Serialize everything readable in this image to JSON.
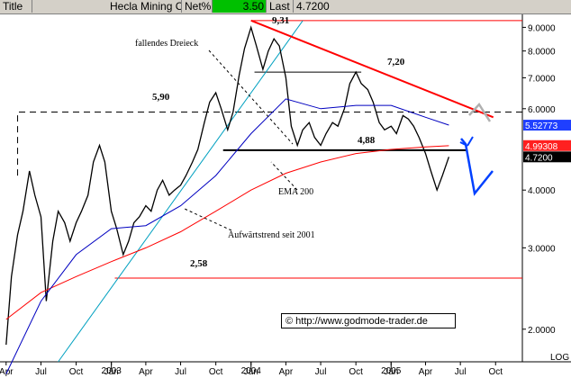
{
  "header": {
    "title_label": "Title",
    "instrument": "Hecla Mining Co",
    "netpct_label": "Net%",
    "netpct_value": "3.50",
    "last_label": "Last",
    "last_value": "4.7200"
  },
  "colors": {
    "header_bg": "#d4d0c8",
    "netpct_bg": "#00c000",
    "price": "#000000",
    "ema200": "#ff0000",
    "ma_blue": "#0000c0",
    "trend_line": "#00a0c0",
    "resistance_line": "#ff0000",
    "forecast": "#0040ff",
    "badge_blue": "#1f3fff",
    "badge_red": "#ff2020"
  },
  "copyright": {
    "symbol": "©",
    "text": "http://www.godmode-trader.de"
  },
  "chart_data": {
    "type": "line",
    "title": "",
    "scale": "log",
    "grid": false,
    "ylim": [
      1.7,
      9.6
    ],
    "x_range": [
      "2002-04",
      "2005-10"
    ],
    "x_tick_labels": [
      {
        "date": "2002-04",
        "label": "Apr"
      },
      {
        "date": "2002-07",
        "label": "Jul"
      },
      {
        "date": "2002-10",
        "label": "Oct"
      },
      {
        "date": "2003-01",
        "label": "Jan"
      },
      {
        "date": "2003-04",
        "label": "Apr"
      },
      {
        "date": "2003-07",
        "label": "Jul"
      },
      {
        "date": "2003-10",
        "label": "Oct"
      },
      {
        "date": "2004-01",
        "label": "Jan"
      },
      {
        "date": "2004-04",
        "label": "Apr"
      },
      {
        "date": "2004-07",
        "label": "Jul"
      },
      {
        "date": "2004-10",
        "label": "Oct"
      },
      {
        "date": "2005-01",
        "label": "Jan"
      },
      {
        "date": "2005-04",
        "label": "Apr"
      },
      {
        "date": "2005-07",
        "label": "Jul"
      },
      {
        "date": "2005-10",
        "label": "Oct"
      }
    ],
    "year_labels": [
      {
        "date": "2003-01",
        "label": "2003"
      },
      {
        "date": "2004-01",
        "label": "2004"
      },
      {
        "date": "2005-01",
        "label": "2005"
      }
    ],
    "y_ticks": [
      {
        "value": 9.0,
        "label": "9.0000"
      },
      {
        "value": 8.0,
        "label": "8.0000"
      },
      {
        "value": 7.0,
        "label": "7.0000"
      },
      {
        "value": 6.0,
        "label": "6.0000"
      },
      {
        "value": 4.0,
        "label": "4.0000"
      },
      {
        "value": 3.0,
        "label": "3.0000"
      },
      {
        "value": 2.0,
        "label": "2.0000"
      }
    ],
    "y_scale_label": "LOG",
    "price_badges": [
      {
        "value": 5.52773,
        "label": "5.52773",
        "color": "#1f3fff"
      },
      {
        "value": 4.99308,
        "label": "4.99308",
        "color": "#ff2020"
      },
      {
        "value": 4.72,
        "label": "4.7200",
        "color": "#000000"
      }
    ],
    "series": [
      {
        "style": "black",
        "points": [
          [
            "2002-04-01",
            1.85
          ],
          [
            "2002-04-15",
            2.6
          ],
          [
            "2002-05-01",
            3.2
          ],
          [
            "2002-05-15",
            3.6
          ],
          [
            "2002-06-01",
            4.4
          ],
          [
            "2002-06-15",
            3.9
          ],
          [
            "2002-07-01",
            3.5
          ],
          [
            "2002-07-15",
            2.3
          ],
          [
            "2002-08-01",
            3.1
          ],
          [
            "2002-08-15",
            3.6
          ],
          [
            "2002-09-01",
            3.4
          ],
          [
            "2002-09-15",
            3.1
          ],
          [
            "2002-10-01",
            3.4
          ],
          [
            "2002-10-15",
            3.6
          ],
          [
            "2002-11-01",
            3.9
          ],
          [
            "2002-11-15",
            4.6
          ],
          [
            "2002-12-01",
            5.0
          ],
          [
            "2002-12-15",
            4.6
          ],
          [
            "2003-01-01",
            3.6
          ],
          [
            "2003-01-15",
            3.3
          ],
          [
            "2003-02-01",
            2.9
          ],
          [
            "2003-02-15",
            3.1
          ],
          [
            "2003-03-01",
            3.4
          ],
          [
            "2003-03-15",
            3.5
          ],
          [
            "2003-04-01",
            3.7
          ],
          [
            "2003-04-15",
            3.6
          ],
          [
            "2003-05-01",
            4.0
          ],
          [
            "2003-05-15",
            4.2
          ],
          [
            "2003-06-01",
            3.9
          ],
          [
            "2003-06-15",
            4.0
          ],
          [
            "2003-07-01",
            4.1
          ],
          [
            "2003-07-15",
            4.3
          ],
          [
            "2003-08-01",
            4.6
          ],
          [
            "2003-08-15",
            4.9
          ],
          [
            "2003-09-01",
            5.6
          ],
          [
            "2003-09-15",
            6.2
          ],
          [
            "2003-10-01",
            6.5
          ],
          [
            "2003-10-15",
            6.0
          ],
          [
            "2003-11-01",
            5.4
          ],
          [
            "2003-11-15",
            5.9
          ],
          [
            "2003-12-01",
            7.1
          ],
          [
            "2003-12-15",
            8.1
          ],
          [
            "2004-01-01",
            9.0
          ],
          [
            "2004-01-15",
            8.2
          ],
          [
            "2004-02-01",
            7.3
          ],
          [
            "2004-02-15",
            8.0
          ],
          [
            "2004-03-01",
            8.5
          ],
          [
            "2004-03-15",
            8.2
          ],
          [
            "2004-04-01",
            7.0
          ],
          [
            "2004-04-15",
            5.5
          ],
          [
            "2004-05-01",
            5.0
          ],
          [
            "2004-05-15",
            5.4
          ],
          [
            "2004-06-01",
            5.6
          ],
          [
            "2004-06-15",
            5.2
          ],
          [
            "2004-07-01",
            5.0
          ],
          [
            "2004-07-15",
            5.3
          ],
          [
            "2004-08-01",
            5.6
          ],
          [
            "2004-08-15",
            5.5
          ],
          [
            "2004-09-01",
            6.0
          ],
          [
            "2004-09-15",
            6.8
          ],
          [
            "2004-10-01",
            7.2
          ],
          [
            "2004-10-15",
            6.8
          ],
          [
            "2004-11-01",
            6.6
          ],
          [
            "2004-11-15",
            6.2
          ],
          [
            "2004-12-01",
            5.6
          ],
          [
            "2004-12-15",
            5.4
          ],
          [
            "2005-01-01",
            5.5
          ],
          [
            "2005-01-15",
            5.3
          ],
          [
            "2005-02-01",
            5.8
          ],
          [
            "2005-02-15",
            5.7
          ],
          [
            "2005-03-01",
            5.5
          ],
          [
            "2005-03-15",
            5.2
          ],
          [
            "2005-04-01",
            4.8
          ],
          [
            "2005-04-15",
            4.4
          ],
          [
            "2005-05-01",
            4.0
          ],
          [
            "2005-05-15",
            4.3
          ],
          [
            "2005-06-01",
            4.72
          ]
        ]
      },
      {
        "name": "EMA 200",
        "style": "red",
        "points": [
          [
            "2002-04-01",
            2.1
          ],
          [
            "2002-07-01",
            2.4
          ],
          [
            "2002-10-01",
            2.6
          ],
          [
            "2003-01-01",
            2.8
          ],
          [
            "2003-04-01",
            3.0
          ],
          [
            "2003-07-01",
            3.25
          ],
          [
            "2003-10-01",
            3.6
          ],
          [
            "2004-01-01",
            4.0
          ],
          [
            "2004-04-01",
            4.35
          ],
          [
            "2004-07-01",
            4.6
          ],
          [
            "2004-10-01",
            4.8
          ],
          [
            "2005-01-01",
            4.9
          ],
          [
            "2005-04-01",
            4.96
          ],
          [
            "2005-06-01",
            4.99
          ]
        ]
      },
      {
        "style": "blue",
        "points": [
          [
            "2002-04-01",
            1.6
          ],
          [
            "2002-07-01",
            2.3
          ],
          [
            "2002-10-01",
            2.9
          ],
          [
            "2003-01-01",
            3.3
          ],
          [
            "2003-04-01",
            3.35
          ],
          [
            "2003-07-01",
            3.7
          ],
          [
            "2003-10-01",
            4.3
          ],
          [
            "2004-01-01",
            5.3
          ],
          [
            "2004-04-01",
            6.3
          ],
          [
            "2004-07-01",
            6.0
          ],
          [
            "2004-10-01",
            6.1
          ],
          [
            "2005-01-01",
            6.1
          ],
          [
            "2005-04-01",
            5.75
          ],
          [
            "2005-06-01",
            5.53
          ]
        ]
      }
    ],
    "annotations": [
      {
        "text": "9,31",
        "value": 9.31
      },
      {
        "text": "7,20",
        "value": 7.2
      },
      {
        "text": "5,90",
        "value": 5.9
      },
      {
        "text": "4,88",
        "value": 4.88
      },
      {
        "text": "2,58",
        "value": 2.58
      },
      {
        "text": "fallendes Dreieck"
      },
      {
        "text": "EMA 200"
      },
      {
        "text": "Aufwärtstrend seit 2001"
      }
    ]
  }
}
